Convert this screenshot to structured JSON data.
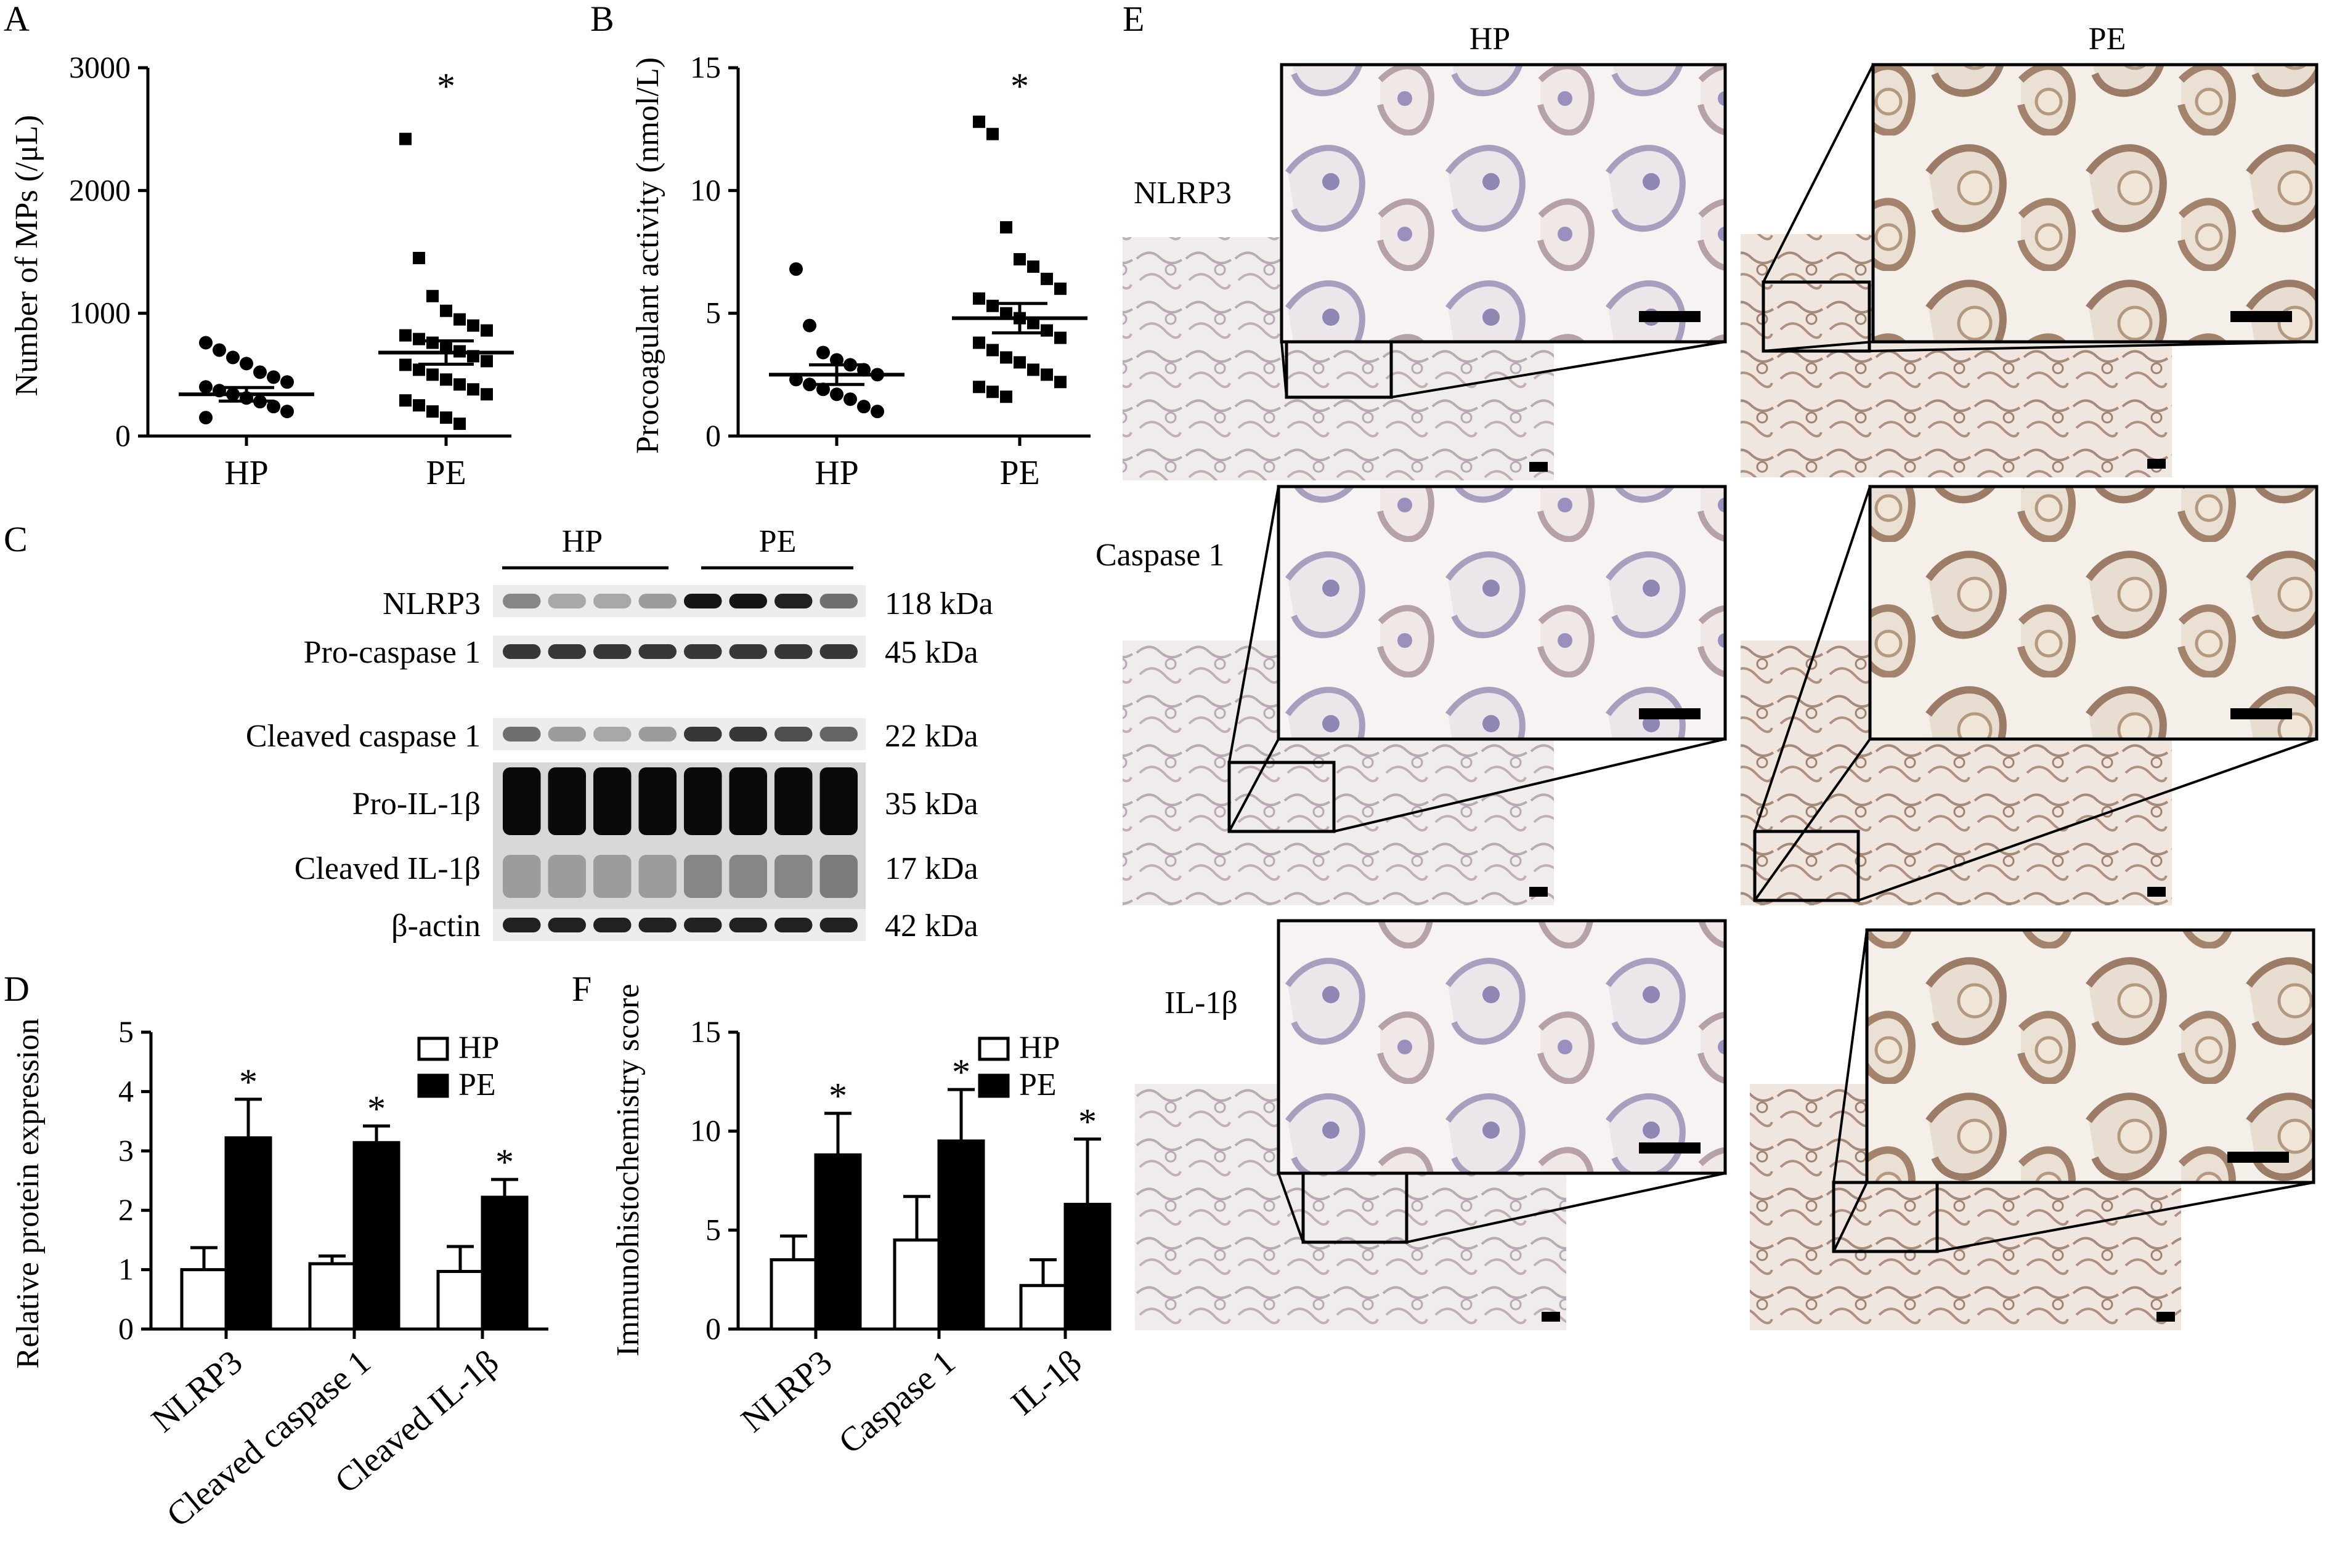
{
  "panels": {
    "A": {
      "label": "A",
      "chart_data": {
        "type": "scatter",
        "categories": [
          "HP",
          "PE"
        ],
        "ylabel": "Number of MPs (/μL)",
        "ylim": [
          0,
          3000
        ],
        "yticks": [
          0,
          1000,
          2000,
          3000
        ],
        "significance": [
          "",
          "*"
        ],
        "series": [
          {
            "values": [
              760,
              700,
              640,
              590,
              520,
              480,
              440,
              400,
              370,
              340,
              310,
              280,
              240,
              200,
              150
            ],
            "mean": 340,
            "sem": 55
          },
          {
            "values": [
              2420,
              1450,
              1140,
              1020,
              950,
              900,
              860,
              820,
              790,
              760,
              720,
              690,
              650,
              610,
              580,
              540,
              500,
              460,
              420,
              380,
              340,
              290,
              250,
              200,
              150,
              100
            ],
            "mean": 680,
            "sem": 95
          }
        ]
      }
    },
    "B": {
      "label": "B",
      "chart_data": {
        "type": "scatter",
        "categories": [
          "HP",
          "PE"
        ],
        "ylabel": "Procoagulant activity (nmol/L)",
        "ylim": [
          0,
          15
        ],
        "yticks": [
          0,
          5,
          10,
          15
        ],
        "significance": [
          "",
          "*"
        ],
        "series": [
          {
            "values": [
              6.8,
              4.5,
              3.4,
              3.1,
              2.9,
              2.7,
              2.5,
              2.3,
              2.1,
              1.9,
              1.7,
              1.5,
              1.2,
              1.0
            ],
            "mean": 2.5,
            "sem": 0.4
          },
          {
            "values": [
              12.8,
              12.3,
              8.5,
              7.2,
              6.9,
              6.4,
              6.0,
              5.6,
              5.3,
              5.0,
              4.8,
              4.6,
              4.3,
              4.0,
              3.8,
              3.5,
              3.2,
              3.0,
              2.7,
              2.5,
              2.2,
              2.0,
              1.8,
              1.6
            ],
            "mean": 4.8,
            "sem": 0.6
          }
        ]
      }
    },
    "C": {
      "label": "C",
      "groups": [
        "HP",
        "PE"
      ],
      "blots": [
        {
          "name": "NLRP3",
          "size": "118 kDa",
          "intensity": [
            0.45,
            0.3,
            0.3,
            0.35,
            0.95,
            0.95,
            0.9,
            0.55
          ]
        },
        {
          "name": "Pro-caspase 1",
          "size": "45 kDa",
          "intensity": [
            0.8,
            0.8,
            0.8,
            0.8,
            0.8,
            0.8,
            0.8,
            0.8
          ]
        },
        {
          "name": "Cleaved caspase 1",
          "size": "22 kDa",
          "intensity": [
            0.55,
            0.35,
            0.3,
            0.35,
            0.8,
            0.8,
            0.7,
            0.6
          ]
        },
        {
          "name": "Pro-IL-1β",
          "size": "35 kDa",
          "intensity": [
            1.0,
            1.0,
            1.0,
            1.0,
            1.0,
            1.0,
            1.0,
            1.0
          ]
        },
        {
          "name": "Cleaved IL-1β",
          "size": "17 kDa",
          "intensity": [
            0.35,
            0.35,
            0.35,
            0.35,
            0.45,
            0.45,
            0.45,
            0.5
          ]
        },
        {
          "name": "β-actin",
          "size": "42 kDa",
          "intensity": [
            0.9,
            0.9,
            0.9,
            0.9,
            0.9,
            0.9,
            0.9,
            0.9
          ]
        }
      ]
    },
    "D": {
      "label": "D",
      "chart_data": {
        "type": "bar",
        "categories": [
          "NLRP3",
          "Cleaved caspase 1",
          "Cleaved IL-1β"
        ],
        "ylabel": "Relative protein expression",
        "ylim": [
          0,
          5
        ],
        "yticks": [
          0,
          1,
          2,
          3,
          4,
          5
        ],
        "legend": "top-right",
        "significance": [
          "*",
          "*",
          "*"
        ],
        "series": [
          {
            "name": "HP",
            "values": [
              1.0,
              1.1,
              0.97
            ],
            "errors": [
              0.37,
              0.13,
              0.42
            ]
          },
          {
            "name": "PE",
            "values": [
              3.22,
              3.14,
              2.22
            ],
            "errors": [
              0.65,
              0.28,
              0.3
            ]
          }
        ]
      }
    },
    "E": {
      "label": "E",
      "columns": [
        "HP",
        "PE"
      ],
      "rows": [
        "NLRP3",
        "Caspase 1",
        "IL-1β"
      ]
    },
    "F": {
      "label": "F",
      "chart_data": {
        "type": "bar",
        "categories": [
          "NLRP3",
          "Caspase 1",
          "IL-1β"
        ],
        "ylabel": "Immunohistochemistry score",
        "ylim": [
          0,
          15
        ],
        "yticks": [
          0,
          5,
          10,
          15
        ],
        "legend": "top-right",
        "significance": [
          "*",
          "*",
          "*"
        ],
        "series": [
          {
            "name": "HP",
            "values": [
              3.5,
              4.5,
              2.2
            ],
            "errors": [
              1.2,
              2.2,
              1.3
            ]
          },
          {
            "name": "PE",
            "values": [
              8.8,
              9.5,
              6.3
            ],
            "errors": [
              2.1,
              2.6,
              3.3
            ]
          }
        ]
      }
    }
  }
}
